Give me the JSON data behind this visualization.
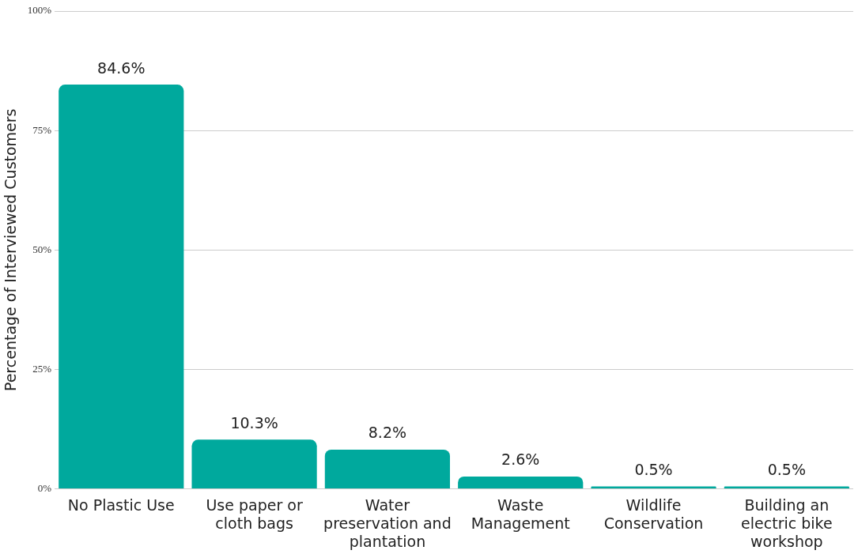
{
  "chart_data": {
    "type": "bar",
    "ylabel": "Percentage of Interviewed Customers",
    "categories": [
      "No Plastic Use",
      "Use paper or cloth bags",
      "Water preservation and plantation",
      "Waste Management",
      "Wildlife Conservation",
      "Building an electric bike workshop"
    ],
    "values": [
      84.6,
      10.3,
      8.2,
      2.6,
      0.5,
      0.5
    ],
    "value_labels": [
      "84.6%",
      "10.3%",
      "8.2%",
      "2.6%",
      "0.5%",
      "0.5%"
    ],
    "color": "#00a99d",
    "ylim": [
      0,
      100
    ],
    "yticks": [
      {
        "value": 0,
        "label": "0%"
      },
      {
        "value": 25,
        "label": "25%"
      },
      {
        "value": 50,
        "label": "50%"
      },
      {
        "value": 75,
        "label": "75%"
      },
      {
        "value": 100,
        "label": "100%"
      }
    ],
    "grid": "y",
    "legend": false
  }
}
